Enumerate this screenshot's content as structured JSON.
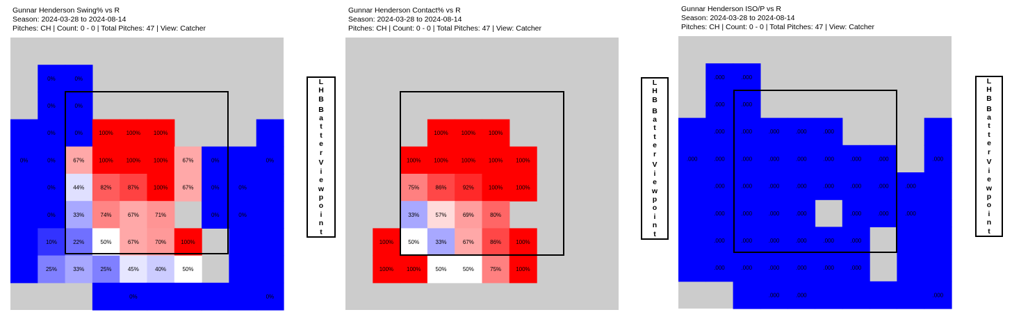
{
  "chart_data": [
    {
      "type": "heatmap",
      "title": "Gunnar Henderson Swing% vs R",
      "subtitle_season": "Season: 2024-03-28 to 2024-08-14",
      "subtitle_filters": "Pitches: CH | Count: 0 - 0 | Total Pitches: 47 | View: Catcher",
      "viewpoint_label": "LHB Batter Viewpoint",
      "colors": {
        "background": "#cccccc",
        "low": "#0000ff",
        "mid": "#ffffff",
        "high": "#ff0000"
      },
      "grid_cols": 10,
      "grid_rows": 10,
      "cells": [
        [
          null,
          null,
          null,
          null,
          null,
          null,
          null,
          null,
          null,
          null
        ],
        [
          null,
          0,
          0,
          null,
          null,
          null,
          null,
          null,
          null,
          null
        ],
        [
          null,
          0,
          0,
          null,
          null,
          null,
          null,
          null,
          null,
          null
        ],
        [
          0,
          0,
          0,
          100,
          100,
          100,
          null,
          null,
          null,
          0
        ],
        [
          0,
          0,
          67,
          100,
          100,
          100,
          67,
          0,
          0,
          0
        ],
        [
          0,
          0,
          44,
          82,
          87,
          100,
          67,
          0,
          0,
          0
        ],
        [
          0,
          0,
          33,
          74,
          67,
          71,
          null,
          0,
          0,
          0
        ],
        [
          0,
          10,
          22,
          50,
          67,
          70,
          100,
          null,
          0,
          0
        ],
        [
          0,
          25,
          33,
          25,
          45,
          40,
          50,
          null,
          0,
          0
        ],
        [
          null,
          null,
          null,
          0,
          0,
          0,
          0,
          0,
          0,
          0
        ]
      ],
      "labels": [
        [
          null,
          null,
          null,
          null,
          null,
          null,
          null,
          null,
          null,
          null
        ],
        [
          null,
          "0%",
          "0%",
          null,
          null,
          null,
          null,
          null,
          null,
          null
        ],
        [
          null,
          "0%",
          "0%",
          null,
          null,
          null,
          null,
          null,
          null,
          null
        ],
        [
          null,
          "0%",
          "0%",
          "100%",
          "100%",
          "100%",
          null,
          null,
          null,
          null
        ],
        [
          "0%",
          "0%",
          "67%",
          "100%",
          "100%",
          "100%",
          "67%",
          "0%",
          null,
          "0%"
        ],
        [
          null,
          "0%",
          "44%",
          "82%",
          "87%",
          "100%",
          "67%",
          "0%",
          "0%",
          null
        ],
        [
          null,
          "0%",
          "33%",
          "74%",
          "67%",
          "71%",
          null,
          "0%",
          "0%",
          null
        ],
        [
          null,
          "10%",
          "22%",
          "50%",
          "67%",
          "70%",
          "100%",
          null,
          null,
          null
        ],
        [
          null,
          "25%",
          "33%",
          "25%",
          "45%",
          "40%",
          "50%",
          null,
          null,
          null
        ],
        [
          null,
          null,
          null,
          null,
          "0%",
          null,
          null,
          null,
          null,
          "0%"
        ]
      ]
    },
    {
      "type": "heatmap",
      "title": "Gunnar Henderson Contact% vs R",
      "subtitle_season": "Season: 2024-03-28 to 2024-08-14",
      "subtitle_filters": "Pitches: CH | Count: 0 - 0 | Total Pitches: 47 | View: Catcher",
      "viewpoint_label": "LHB Batter Viewpoint",
      "colors": {
        "background": "#cccccc",
        "low": "#0000ff",
        "mid": "#ffffff",
        "high": "#ff0000"
      },
      "grid_cols": 10,
      "grid_rows": 10,
      "cells": [
        [
          null,
          null,
          null,
          null,
          null,
          null,
          null,
          null,
          null,
          null
        ],
        [
          null,
          null,
          null,
          null,
          null,
          null,
          null,
          null,
          null,
          null
        ],
        [
          null,
          null,
          null,
          null,
          null,
          null,
          null,
          null,
          null,
          null
        ],
        [
          null,
          null,
          null,
          100,
          100,
          100,
          null,
          null,
          null,
          null
        ],
        [
          null,
          null,
          100,
          100,
          100,
          100,
          100,
          null,
          null,
          null
        ],
        [
          null,
          null,
          75,
          86,
          92,
          100,
          100,
          null,
          null,
          null
        ],
        [
          null,
          null,
          33,
          57,
          69,
          80,
          null,
          null,
          null,
          null
        ],
        [
          null,
          100,
          50,
          33,
          67,
          86,
          100,
          null,
          null,
          null
        ],
        [
          null,
          100,
          100,
          50,
          50,
          75,
          100,
          null,
          null,
          null
        ],
        [
          null,
          null,
          null,
          null,
          null,
          null,
          null,
          null,
          null,
          null
        ]
      ],
      "labels": [
        [
          null,
          null,
          null,
          null,
          null,
          null,
          null,
          null,
          null,
          null
        ],
        [
          null,
          null,
          null,
          null,
          null,
          null,
          null,
          null,
          null,
          null
        ],
        [
          null,
          null,
          null,
          null,
          null,
          null,
          null,
          null,
          null,
          null
        ],
        [
          null,
          null,
          null,
          "100%",
          "100%",
          "100%",
          null,
          null,
          null,
          null
        ],
        [
          null,
          null,
          "100%",
          "100%",
          "100%",
          "100%",
          "100%",
          null,
          null,
          null
        ],
        [
          null,
          null,
          "75%",
          "86%",
          "92%",
          "100%",
          "100%",
          null,
          null,
          null
        ],
        [
          null,
          null,
          "33%",
          "57%",
          "69%",
          "80%",
          null,
          null,
          null,
          null
        ],
        [
          null,
          "100%",
          "50%",
          "33%",
          "67%",
          "86%",
          "100%",
          null,
          null,
          null
        ],
        [
          null,
          "100%",
          "100%",
          "50%",
          "50%",
          "75%",
          "100%",
          null,
          null,
          null
        ],
        [
          null,
          null,
          null,
          null,
          null,
          null,
          null,
          null,
          null,
          null
        ]
      ]
    },
    {
      "type": "heatmap",
      "title": "Gunnar Henderson ISO/P vs R",
      "subtitle_season": "Season: 2024-03-28 to 2024-08-14",
      "subtitle_filters": "Pitches: CH | Count: 0 - 0 | Total Pitches: 47 | View: Catcher",
      "viewpoint_label": "LHB Batter Viewpoint",
      "colors": {
        "background": "#cccccc",
        "low": "#0000ff",
        "mid": "#ffffff",
        "high": "#ff0000"
      },
      "grid_cols": 10,
      "grid_rows": 10,
      "cells": [
        [
          null,
          null,
          null,
          null,
          null,
          null,
          null,
          null,
          null,
          null
        ],
        [
          null,
          0,
          0,
          null,
          null,
          null,
          null,
          null,
          null,
          null
        ],
        [
          null,
          0,
          0,
          null,
          null,
          null,
          null,
          null,
          null,
          null
        ],
        [
          0,
          0,
          0,
          0,
          0,
          0,
          null,
          null,
          null,
          0
        ],
        [
          0,
          0,
          0,
          0,
          0,
          0,
          0,
          0,
          null,
          0
        ],
        [
          0,
          0,
          0,
          0,
          0,
          0,
          0,
          0,
          0,
          0
        ],
        [
          0,
          0,
          0,
          0,
          0,
          null,
          0,
          0,
          0,
          0
        ],
        [
          0,
          0,
          0,
          0,
          0,
          0,
          0,
          null,
          0,
          0
        ],
        [
          0,
          0,
          0,
          0,
          0,
          0,
          0,
          null,
          0,
          0
        ],
        [
          null,
          null,
          0,
          0,
          0,
          0,
          0,
          0,
          0,
          0
        ]
      ],
      "labels": [
        [
          null,
          null,
          null,
          null,
          null,
          null,
          null,
          null,
          null,
          null
        ],
        [
          null,
          ".000",
          ".000",
          null,
          null,
          null,
          null,
          null,
          null,
          null
        ],
        [
          null,
          ".000",
          ".000",
          null,
          null,
          null,
          null,
          null,
          null,
          null
        ],
        [
          null,
          ".000",
          ".000",
          ".000",
          ".000",
          ".000",
          null,
          null,
          null,
          null
        ],
        [
          ".000",
          ".000",
          ".000",
          ".000",
          ".000",
          ".000",
          ".000",
          ".000",
          null,
          ".000"
        ],
        [
          null,
          ".000",
          ".000",
          ".000",
          ".000",
          ".000",
          ".000",
          ".000",
          ".000",
          null
        ],
        [
          null,
          ".000",
          ".000",
          ".000",
          ".000",
          null,
          ".000",
          ".000",
          ".000",
          null
        ],
        [
          null,
          ".000",
          ".000",
          ".000",
          ".000",
          ".000",
          ".000",
          null,
          null,
          null
        ],
        [
          null,
          ".000",
          ".000",
          ".000",
          ".000",
          ".000",
          ".000",
          null,
          null,
          null
        ],
        [
          null,
          null,
          null,
          ".000",
          ".000",
          null,
          null,
          null,
          null,
          ".000"
        ]
      ]
    }
  ]
}
